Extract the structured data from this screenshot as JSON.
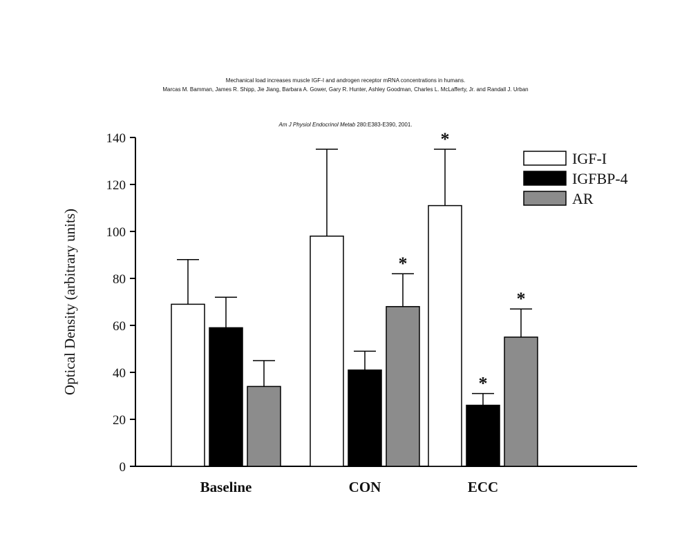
{
  "header": {
    "title_line": "Mechanical load increases muscle IGF-I and androgen receptor mRNA concentrations in humans.",
    "authors_line": "Marcas M. Bamman, James R. Shipp, Jie Jiang, Barbara A. Gower, Gary R. Hunter, Ashley Goodman, Charles L. McLafferty, Jr. and Randall J. Urban",
    "journal_italic": "Am J Physiol Endocrinol Metab",
    "journal_plain": " 280:E383-E390, 2001."
  },
  "chart_data": {
    "type": "bar",
    "title": "",
    "xlabel": "",
    "ylabel": "Optical Density (arbitrary units)",
    "ylim": [
      0,
      140
    ],
    "yticks": [
      "0",
      "20",
      "40",
      "60",
      "80",
      "100",
      "120",
      "140"
    ],
    "categories": [
      "Baseline",
      "CON",
      "ECC"
    ],
    "legend_position": "top-right",
    "grid": false,
    "series": [
      {
        "name": "IGF-I",
        "color": "#ffffff",
        "values": [
          69,
          98,
          111
        ],
        "errors": [
          19,
          37,
          24
        ],
        "significant": [
          false,
          false,
          true
        ]
      },
      {
        "name": "IGFBP-4",
        "color": "#000000",
        "values": [
          59,
          41,
          26
        ],
        "errors": [
          13,
          8,
          5
        ],
        "significant": [
          false,
          false,
          true
        ]
      },
      {
        "name": "AR",
        "color": "#8c8c8c",
        "values": [
          34,
          68,
          55
        ],
        "errors": [
          11,
          14,
          12
        ],
        "significant": [
          false,
          true,
          true
        ]
      }
    ],
    "significance_marker": "*"
  }
}
